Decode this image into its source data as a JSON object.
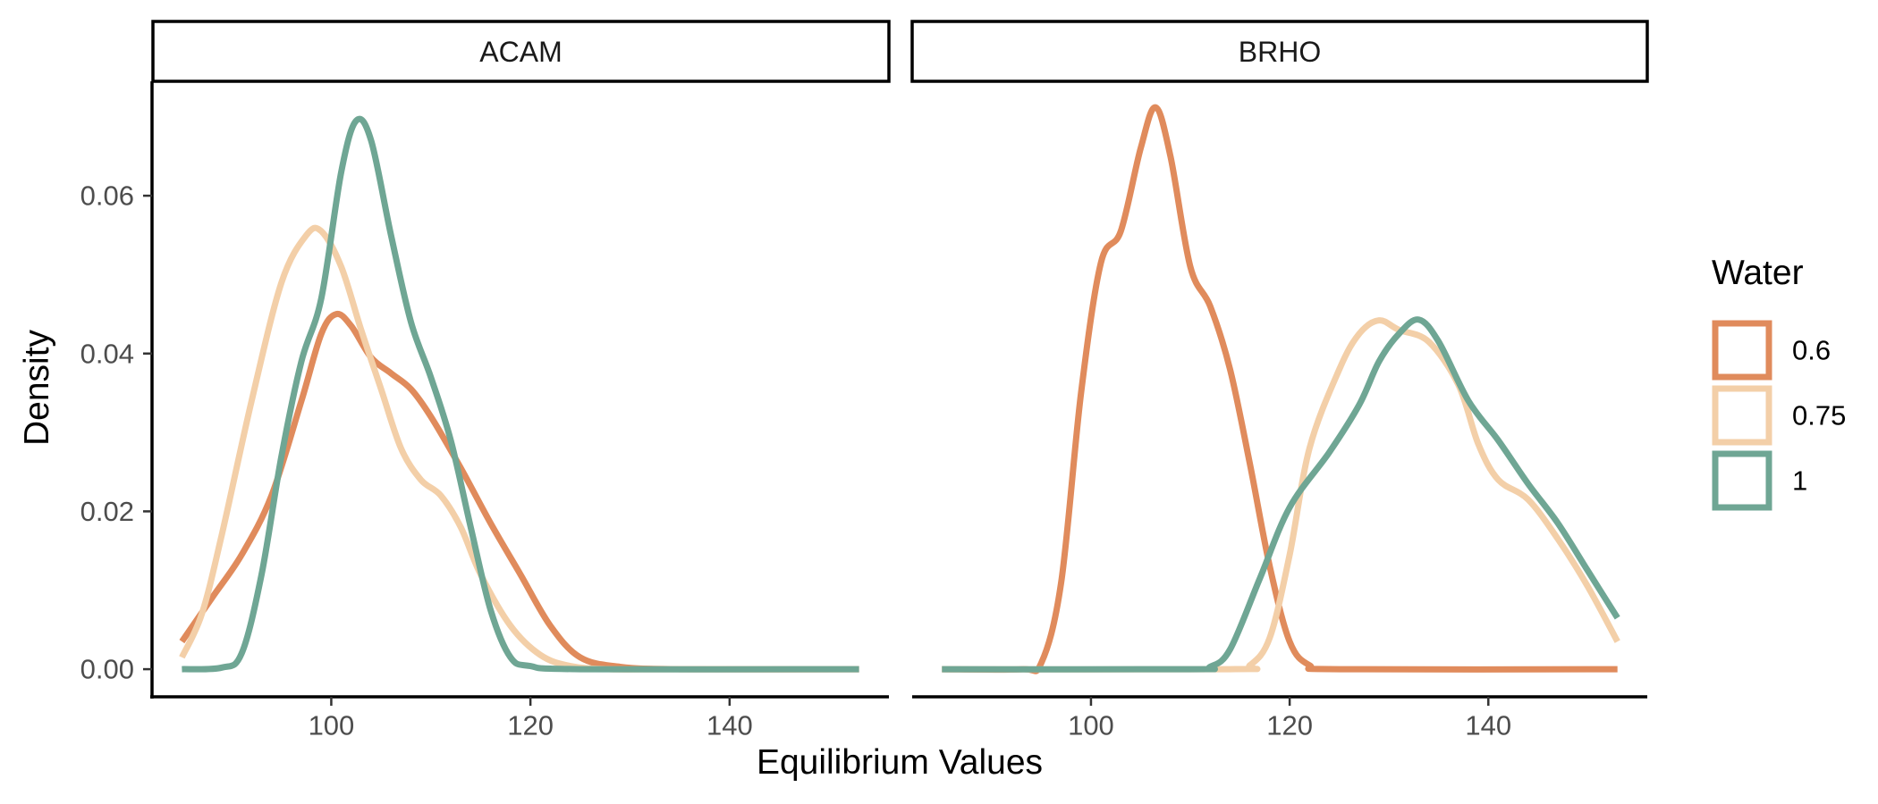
{
  "chart_data": {
    "type": "line",
    "xlabel": "Equilibrium Values",
    "ylabel": "Density",
    "xlim": [
      82,
      156
    ],
    "ylim": [
      -0.0035,
      0.0745
    ],
    "x_ticks": [
      100,
      120,
      140
    ],
    "x_tick_labels": [
      "100",
      "120",
      "140"
    ],
    "y_ticks": [
      0,
      0.02,
      0.04,
      0.06
    ],
    "y_tick_labels": [
      "0.00",
      "0.02",
      "0.04",
      "0.06"
    ],
    "grid": false,
    "legend": {
      "title": "Water",
      "placement": "right",
      "entries": [
        {
          "label": "0.6",
          "color": "#E08B5C"
        },
        {
          "label": "0.75",
          "color": "#F3CFA8"
        },
        {
          "label": "1",
          "color": "#6FA694"
        }
      ]
    },
    "panels": [
      {
        "title": "ACAM",
        "series": [
          {
            "name": "0.6",
            "color": "#E08B5C",
            "points": [
              [
                85,
                0.0035
              ],
              [
                88,
                0.009
              ],
              [
                91,
                0.0145
              ],
              [
                94,
                0.022
              ],
              [
                97,
                0.034
              ],
              [
                99,
                0.0425
              ],
              [
                100.5,
                0.045
              ],
              [
                102,
                0.0435
              ],
              [
                104,
                0.0395
              ],
              [
                106,
                0.0375
              ],
              [
                108,
                0.0355
              ],
              [
                110,
                0.032
              ],
              [
                113,
                0.0255
              ],
              [
                116,
                0.0185
              ],
              [
                119,
                0.012
              ],
              [
                122,
                0.0055
              ],
              [
                125,
                0.0015
              ],
              [
                129,
                0.0003
              ],
              [
                135,
                0.0
              ],
              [
                153,
                0.0
              ]
            ]
          },
          {
            "name": "0.75",
            "color": "#F3CFA8",
            "points": [
              [
                85,
                0.0015
              ],
              [
                87,
                0.007
              ],
              [
                89,
                0.017
              ],
              [
                92,
                0.034
              ],
              [
                95,
                0.049
              ],
              [
                97.5,
                0.055
              ],
              [
                99,
                0.0555
              ],
              [
                101,
                0.051
              ],
              [
                103,
                0.043
              ],
              [
                105,
                0.0355
              ],
              [
                107,
                0.028
              ],
              [
                109,
                0.024
              ],
              [
                111,
                0.022
              ],
              [
                113,
                0.018
              ],
              [
                115,
                0.012
              ],
              [
                118,
                0.0055
              ],
              [
                121,
                0.0018
              ],
              [
                124,
                0.0004
              ],
              [
                128,
                0.0
              ],
              [
                135,
                0.0
              ],
              [
                153,
                0.0
              ]
            ]
          },
          {
            "name": "1",
            "color": "#6FA694",
            "points": [
              [
                85,
                0.0
              ],
              [
                89,
                0.0002
              ],
              [
                91,
                0.002
              ],
              [
                93,
                0.012
              ],
              [
                95,
                0.027
              ],
              [
                97,
                0.039
              ],
              [
                99,
                0.047
              ],
              [
                101,
                0.063
              ],
              [
                102.5,
                0.0695
              ],
              [
                104,
                0.067
              ],
              [
                106,
                0.055
              ],
              [
                108,
                0.044
              ],
              [
                110,
                0.037
              ],
              [
                112,
                0.029
              ],
              [
                114,
                0.018
              ],
              [
                116,
                0.0075
              ],
              [
                118,
                0.0015
              ],
              [
                120,
                0.0004
              ],
              [
                125,
                0.0
              ],
              [
                153,
                0.0
              ]
            ]
          }
        ]
      },
      {
        "title": "BRHO",
        "series": [
          {
            "name": "0.6",
            "color": "#E08B5C",
            "points": [
              [
                85,
                0.0
              ],
              [
                93,
                0.0
              ],
              [
                95,
                0.0008
              ],
              [
                97,
                0.011
              ],
              [
                99,
                0.035
              ],
              [
                101,
                0.0515
              ],
              [
                103,
                0.0555
              ],
              [
                105,
                0.066
              ],
              [
                106.5,
                0.0712
              ],
              [
                108,
                0.065
              ],
              [
                110,
                0.051
              ],
              [
                112,
                0.046
              ],
              [
                114,
                0.038
              ],
              [
                116,
                0.026
              ],
              [
                118,
                0.013
              ],
              [
                120,
                0.0035
              ],
              [
                122,
                0.0005
              ],
              [
                125,
                0.0
              ],
              [
                153,
                0.0
              ]
            ]
          },
          {
            "name": "0.75",
            "color": "#F3CFA8",
            "points": [
              [
                85,
                0.0
              ],
              [
                114,
                0.0
              ],
              [
                116,
                0.0005
              ],
              [
                118,
                0.004
              ],
              [
                120,
                0.0145
              ],
              [
                122,
                0.028
              ],
              [
                125,
                0.038
              ],
              [
                127,
                0.0425
              ],
              [
                129,
                0.0442
              ],
              [
                131,
                0.043
              ],
              [
                134,
                0.0415
              ],
              [
                137,
                0.036
              ],
              [
                139,
                0.0285
              ],
              [
                141,
                0.024
              ],
              [
                144,
                0.0215
              ],
              [
                147,
                0.0165
              ],
              [
                150,
                0.0105
              ],
              [
                153,
                0.0035
              ]
            ]
          },
          {
            "name": "1",
            "color": "#6FA694",
            "points": [
              [
                85,
                0.0
              ],
              [
                110,
                0.0
              ],
              [
                112,
                0.0003
              ],
              [
                114,
                0.0025
              ],
              [
                117,
                0.0115
              ],
              [
                120,
                0.0205
              ],
              [
                124,
                0.0275
              ],
              [
                127,
                0.0335
              ],
              [
                129,
                0.039
              ],
              [
                131,
                0.0425
              ],
              [
                133,
                0.0443
              ],
              [
                135,
                0.0415
              ],
              [
                138,
                0.034
              ],
              [
                141,
                0.029
              ],
              [
                144,
                0.0235
              ],
              [
                147,
                0.0185
              ],
              [
                150,
                0.0125
              ],
              [
                153,
                0.0065
              ]
            ]
          }
        ]
      }
    ]
  }
}
